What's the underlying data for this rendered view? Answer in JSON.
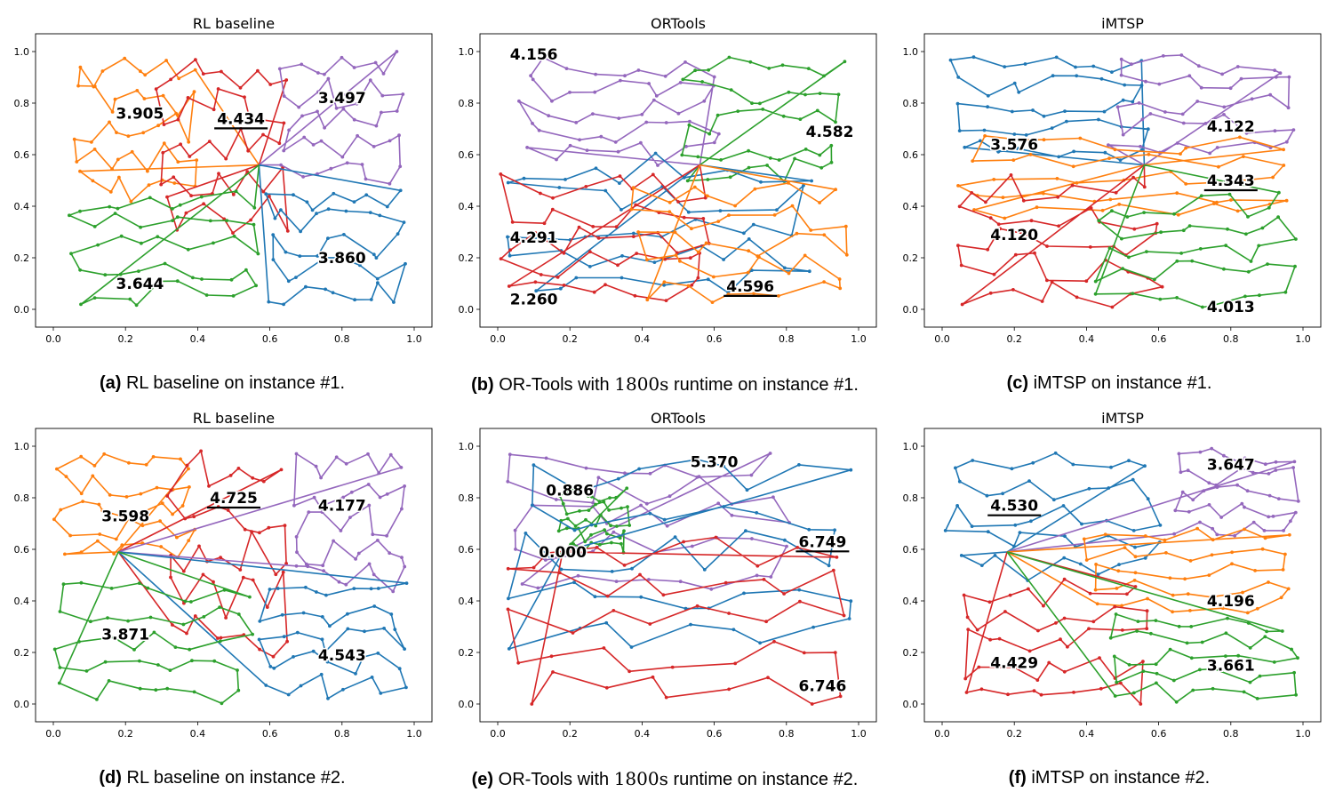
{
  "colors": {
    "blue": "#1f77b4",
    "orange": "#ff7f0e",
    "green": "#2ca02c",
    "red": "#d62728",
    "purple": "#9467bd"
  },
  "chart_data": [
    {
      "type": "line",
      "title": "RL baseline",
      "xlim": [
        0,
        1
      ],
      "ylim": [
        0,
        1
      ],
      "x_ticks": [
        "0.0",
        "0.2",
        "0.4",
        "0.6",
        "0.8",
        "1.0"
      ],
      "y_ticks": [
        "0.0",
        "0.2",
        "0.4",
        "0.6",
        "0.8",
        "1.0"
      ],
      "depot": [
        0.57,
        0.56
      ],
      "tour_labels": [
        {
          "text": "3.905",
          "x": 0.24,
          "y": 0.76,
          "underline": false
        },
        {
          "text": "4.434",
          "x": 0.52,
          "y": 0.74,
          "underline": true
        },
        {
          "text": "3.497",
          "x": 0.8,
          "y": 0.82,
          "underline": false
        },
        {
          "text": "3.860",
          "x": 0.8,
          "y": 0.2,
          "underline": false
        },
        {
          "text": "3.644",
          "x": 0.24,
          "y": 0.1,
          "underline": false
        }
      ],
      "series": [
        {
          "color": "orange",
          "region": [
            0.05,
            0.4,
            0.42,
            0.98
          ]
        },
        {
          "color": "red",
          "region": [
            0.28,
            0.66,
            0.3,
            0.99
          ]
        },
        {
          "color": "purple",
          "region": [
            0.62,
            0.98,
            0.46,
            1.0
          ]
        },
        {
          "color": "blue",
          "region": [
            0.58,
            0.98,
            0.01,
            0.48
          ]
        },
        {
          "color": "green",
          "region": [
            0.04,
            0.58,
            0.02,
            0.46
          ]
        }
      ]
    },
    {
      "type": "line",
      "title": "ORTools",
      "xlim": [
        0,
        1
      ],
      "ylim": [
        0,
        1
      ],
      "x_ticks": [
        "0.0",
        "0.2",
        "0.4",
        "0.6",
        "0.8",
        "1.0"
      ],
      "y_ticks": [
        "0.0",
        "0.2",
        "0.4",
        "0.6",
        "0.8",
        "1.0"
      ],
      "depot": [
        0.56,
        0.56
      ],
      "tour_labels": [
        {
          "text": "4.156",
          "x": 0.1,
          "y": 0.99,
          "underline": false
        },
        {
          "text": "4.582",
          "x": 0.92,
          "y": 0.69,
          "underline": false
        },
        {
          "text": "4.291",
          "x": 0.1,
          "y": 0.28,
          "underline": false
        },
        {
          "text": "2.260",
          "x": 0.1,
          "y": 0.04,
          "underline": false
        },
        {
          "text": "4.596",
          "x": 0.7,
          "y": 0.09,
          "underline": true
        }
      ],
      "series": [
        {
          "color": "purple",
          "region": [
            0.04,
            0.62,
            0.56,
            0.98
          ]
        },
        {
          "color": "green",
          "region": [
            0.5,
            0.97,
            0.48,
            0.99
          ]
        },
        {
          "color": "blue",
          "region": [
            0.02,
            0.88,
            0.05,
            0.6
          ]
        },
        {
          "color": "red",
          "region": [
            0.0,
            0.62,
            0.02,
            0.52
          ]
        },
        {
          "color": "orange",
          "region": [
            0.36,
            0.98,
            0.01,
            0.5
          ]
        }
      ]
    },
    {
      "type": "line",
      "title": "iMTSP",
      "xlim": [
        0,
        1
      ],
      "ylim": [
        0,
        1
      ],
      "x_ticks": [
        "0.0",
        "0.2",
        "0.4",
        "0.6",
        "0.8",
        "1.0"
      ],
      "y_ticks": [
        "0.0",
        "0.2",
        "0.4",
        "0.6",
        "0.8",
        "1.0"
      ],
      "depot": [
        0.56,
        0.56
      ],
      "tour_labels": [
        {
          "text": "3.576",
          "x": 0.2,
          "y": 0.64,
          "underline": false
        },
        {
          "text": "4.122",
          "x": 0.8,
          "y": 0.71,
          "underline": false
        },
        {
          "text": "4.343",
          "x": 0.8,
          "y": 0.5,
          "underline": true
        },
        {
          "text": "4.120",
          "x": 0.2,
          "y": 0.29,
          "underline": false
        },
        {
          "text": "4.013",
          "x": 0.8,
          "y": 0.01,
          "underline": false
        }
      ],
      "series": [
        {
          "color": "blue",
          "region": [
            0.02,
            0.58,
            0.58,
            0.99
          ]
        },
        {
          "color": "purple",
          "region": [
            0.45,
            0.99,
            0.6,
            0.99
          ]
        },
        {
          "color": "orange",
          "region": [
            0.02,
            0.99,
            0.35,
            0.67
          ]
        },
        {
          "color": "red",
          "region": [
            0.02,
            0.62,
            0.01,
            0.52
          ]
        },
        {
          "color": "green",
          "region": [
            0.42,
            0.99,
            0.01,
            0.45
          ]
        }
      ]
    },
    {
      "type": "line",
      "title": "RL baseline",
      "xlim": [
        0,
        1
      ],
      "ylim": [
        0,
        1
      ],
      "x_ticks": [
        "0.0",
        "0.2",
        "0.4",
        "0.6",
        "0.8",
        "1.0"
      ],
      "y_ticks": [
        "0.0",
        "0.2",
        "0.4",
        "0.6",
        "0.8",
        "1.0"
      ],
      "depot": [
        0.18,
        0.59
      ],
      "tour_labels": [
        {
          "text": "3.598",
          "x": 0.2,
          "y": 0.73,
          "underline": false
        },
        {
          "text": "4.725",
          "x": 0.5,
          "y": 0.8,
          "underline": true
        },
        {
          "text": "4.177",
          "x": 0.8,
          "y": 0.77,
          "underline": false
        },
        {
          "text": "3.871",
          "x": 0.2,
          "y": 0.27,
          "underline": false
        },
        {
          "text": "4.543",
          "x": 0.8,
          "y": 0.19,
          "underline": false
        }
      ],
      "series": [
        {
          "color": "orange",
          "region": [
            0.0,
            0.4,
            0.55,
            0.98
          ]
        },
        {
          "color": "red",
          "region": [
            0.3,
            0.66,
            0.18,
            0.99
          ]
        },
        {
          "color": "purple",
          "region": [
            0.66,
            0.99,
            0.43,
            0.99
          ]
        },
        {
          "color": "blue",
          "region": [
            0.56,
            0.99,
            0.02,
            0.47
          ]
        },
        {
          "color": "green",
          "region": [
            0.0,
            0.56,
            0.0,
            0.48
          ]
        }
      ]
    },
    {
      "type": "line",
      "title": "ORTools",
      "xlim": [
        0,
        1
      ],
      "ylim": [
        0,
        1
      ],
      "x_ticks": [
        "0.0",
        "0.2",
        "0.4",
        "0.6",
        "0.8",
        "1.0"
      ],
      "y_ticks": [
        "0.0",
        "0.2",
        "0.4",
        "0.6",
        "0.8",
        "1.0"
      ],
      "depot": [
        0.18,
        0.59
      ],
      "tour_labels": [
        {
          "text": "5.370",
          "x": 0.6,
          "y": 0.94,
          "underline": false
        },
        {
          "text": "0.886",
          "x": 0.2,
          "y": 0.83,
          "underline": false
        },
        {
          "text": "0.000",
          "x": 0.18,
          "y": 0.59,
          "underline": false
        },
        {
          "text": "6.749",
          "x": 0.9,
          "y": 0.63,
          "underline": true
        },
        {
          "text": "6.746",
          "x": 0.9,
          "y": 0.07,
          "underline": false
        }
      ],
      "series": [
        {
          "color": "purple",
          "region": [
            0.0,
            0.82,
            0.45,
            0.99
          ]
        },
        {
          "color": "green",
          "region": [
            0.16,
            0.37,
            0.58,
            0.84
          ]
        },
        {
          "color": "blue",
          "region": [
            0.02,
            0.99,
            0.18,
            0.99
          ]
        },
        {
          "color": "red",
          "region": [
            0.02,
            0.99,
            0.0,
            0.66
          ]
        }
      ]
    },
    {
      "type": "line",
      "title": "iMTSP",
      "xlim": [
        0,
        1
      ],
      "ylim": [
        0,
        1
      ],
      "x_ticks": [
        "0.0",
        "0.2",
        "0.4",
        "0.6",
        "0.8",
        "1.0"
      ],
      "y_ticks": [
        "0.0",
        "0.2",
        "0.4",
        "0.6",
        "0.8",
        "1.0"
      ],
      "depot": [
        0.18,
        0.59
      ],
      "tour_labels": [
        {
          "text": "3.647",
          "x": 0.8,
          "y": 0.93,
          "underline": false
        },
        {
          "text": "4.530",
          "x": 0.2,
          "y": 0.77,
          "underline": true
        },
        {
          "text": "4.196",
          "x": 0.8,
          "y": 0.4,
          "underline": false
        },
        {
          "text": "4.429",
          "x": 0.2,
          "y": 0.16,
          "underline": false
        },
        {
          "text": "3.661",
          "x": 0.8,
          "y": 0.15,
          "underline": false
        }
      ],
      "series": [
        {
          "color": "blue",
          "region": [
            0.0,
            0.62,
            0.47,
            0.99
          ]
        },
        {
          "color": "purple",
          "region": [
            0.64,
            0.99,
            0.64,
            0.99
          ]
        },
        {
          "color": "orange",
          "region": [
            0.38,
            0.99,
            0.35,
            0.68
          ]
        },
        {
          "color": "red",
          "region": [
            0.02,
            0.58,
            0.0,
            0.48
          ]
        },
        {
          "color": "green",
          "region": [
            0.44,
            0.99,
            0.01,
            0.35
          ]
        }
      ]
    }
  ],
  "captions": [
    {
      "tag": "(a)",
      "pre": "RL baseline on instance #1.",
      "math": "",
      "post": ""
    },
    {
      "tag": "(b)",
      "pre": "OR-Tools with",
      "math": "1800s",
      "post": "runtime on instance #1."
    },
    {
      "tag": "(c)",
      "pre": "iMTSP on instance #1.",
      "math": "",
      "post": ""
    },
    {
      "tag": "(d)",
      "pre": "RL baseline on instance #2.",
      "math": "",
      "post": ""
    },
    {
      "tag": "(e)",
      "pre": "OR-Tools with",
      "math": "1800s",
      "post": "runtime on instance #2."
    },
    {
      "tag": "(f)",
      "pre": "iMTSP on instance #2.",
      "math": "",
      "post": ""
    }
  ]
}
